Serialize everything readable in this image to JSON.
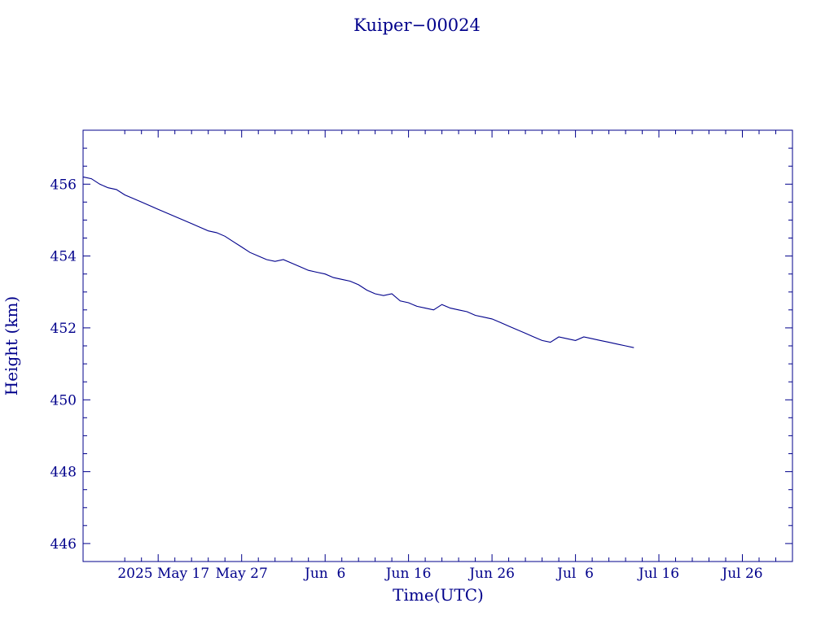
{
  "chart_data": {
    "type": "line",
    "title": "Kuiper−00024",
    "xlabel": "Time(UTC)",
    "ylabel": "Height (km)",
    "color": "#00008b",
    "grid": false,
    "legend": "none",
    "xlim": [
      "2025-05-08",
      "2025-08-01"
    ],
    "ylim": [
      445.5,
      457.5
    ],
    "x_ticks": [
      {
        "date": "2025-05-17",
        "label": "2025 May 17"
      },
      {
        "date": "2025-05-27",
        "label": "May 27"
      },
      {
        "date": "2025-06-06",
        "label": "Jun  6"
      },
      {
        "date": "2025-06-16",
        "label": "Jun 16"
      },
      {
        "date": "2025-06-26",
        "label": "Jun 26"
      },
      {
        "date": "2025-07-06",
        "label": "Jul  6"
      },
      {
        "date": "2025-07-16",
        "label": "Jul 16"
      },
      {
        "date": "2025-07-26",
        "label": "Jul 26"
      }
    ],
    "y_ticks": [
      446,
      448,
      450,
      452,
      454,
      456
    ],
    "series": [
      {
        "name": "",
        "x": [
          "2025-05-08",
          "2025-05-09",
          "2025-05-10",
          "2025-05-11",
          "2025-05-12",
          "2025-05-13",
          "2025-05-14",
          "2025-05-15",
          "2025-05-16",
          "2025-05-17",
          "2025-05-18",
          "2025-05-19",
          "2025-05-20",
          "2025-05-21",
          "2025-05-22",
          "2025-05-23",
          "2025-05-24",
          "2025-05-25",
          "2025-05-26",
          "2025-05-27",
          "2025-05-28",
          "2025-05-29",
          "2025-05-30",
          "2025-05-31",
          "2025-06-01",
          "2025-06-02",
          "2025-06-03",
          "2025-06-04",
          "2025-06-05",
          "2025-06-06",
          "2025-06-07",
          "2025-06-08",
          "2025-06-09",
          "2025-06-10",
          "2025-06-11",
          "2025-06-12",
          "2025-06-13",
          "2025-06-14",
          "2025-06-15",
          "2025-06-16",
          "2025-06-17",
          "2025-06-18",
          "2025-06-19",
          "2025-06-20",
          "2025-06-21",
          "2025-06-22",
          "2025-06-23",
          "2025-06-24",
          "2025-06-25",
          "2025-06-26",
          "2025-06-27",
          "2025-06-28",
          "2025-06-29",
          "2025-06-30",
          "2025-07-01",
          "2025-07-02",
          "2025-07-03",
          "2025-07-04",
          "2025-07-05",
          "2025-07-06",
          "2025-07-07",
          "2025-07-08",
          "2025-07-09",
          "2025-07-10",
          "2025-07-11",
          "2025-07-12",
          "2025-07-13"
        ],
        "y": [
          456.2,
          456.15,
          456.0,
          455.9,
          455.85,
          455.7,
          455.6,
          455.5,
          455.4,
          455.3,
          455.2,
          455.1,
          455.0,
          454.9,
          454.8,
          454.7,
          454.65,
          454.55,
          454.4,
          454.25,
          454.1,
          454.0,
          453.9,
          453.85,
          453.9,
          453.8,
          453.7,
          453.6,
          453.55,
          453.5,
          453.4,
          453.35,
          453.3,
          453.2,
          453.05,
          452.95,
          452.9,
          452.95,
          452.75,
          452.7,
          452.6,
          452.55,
          452.5,
          452.65,
          452.55,
          452.5,
          452.45,
          452.35,
          452.3,
          452.25,
          452.15,
          452.05,
          451.95,
          451.85,
          451.75,
          451.65,
          451.6,
          451.75,
          451.7,
          451.65,
          451.75,
          451.7,
          451.65,
          451.6,
          451.55,
          451.5,
          451.45
        ]
      }
    ]
  }
}
